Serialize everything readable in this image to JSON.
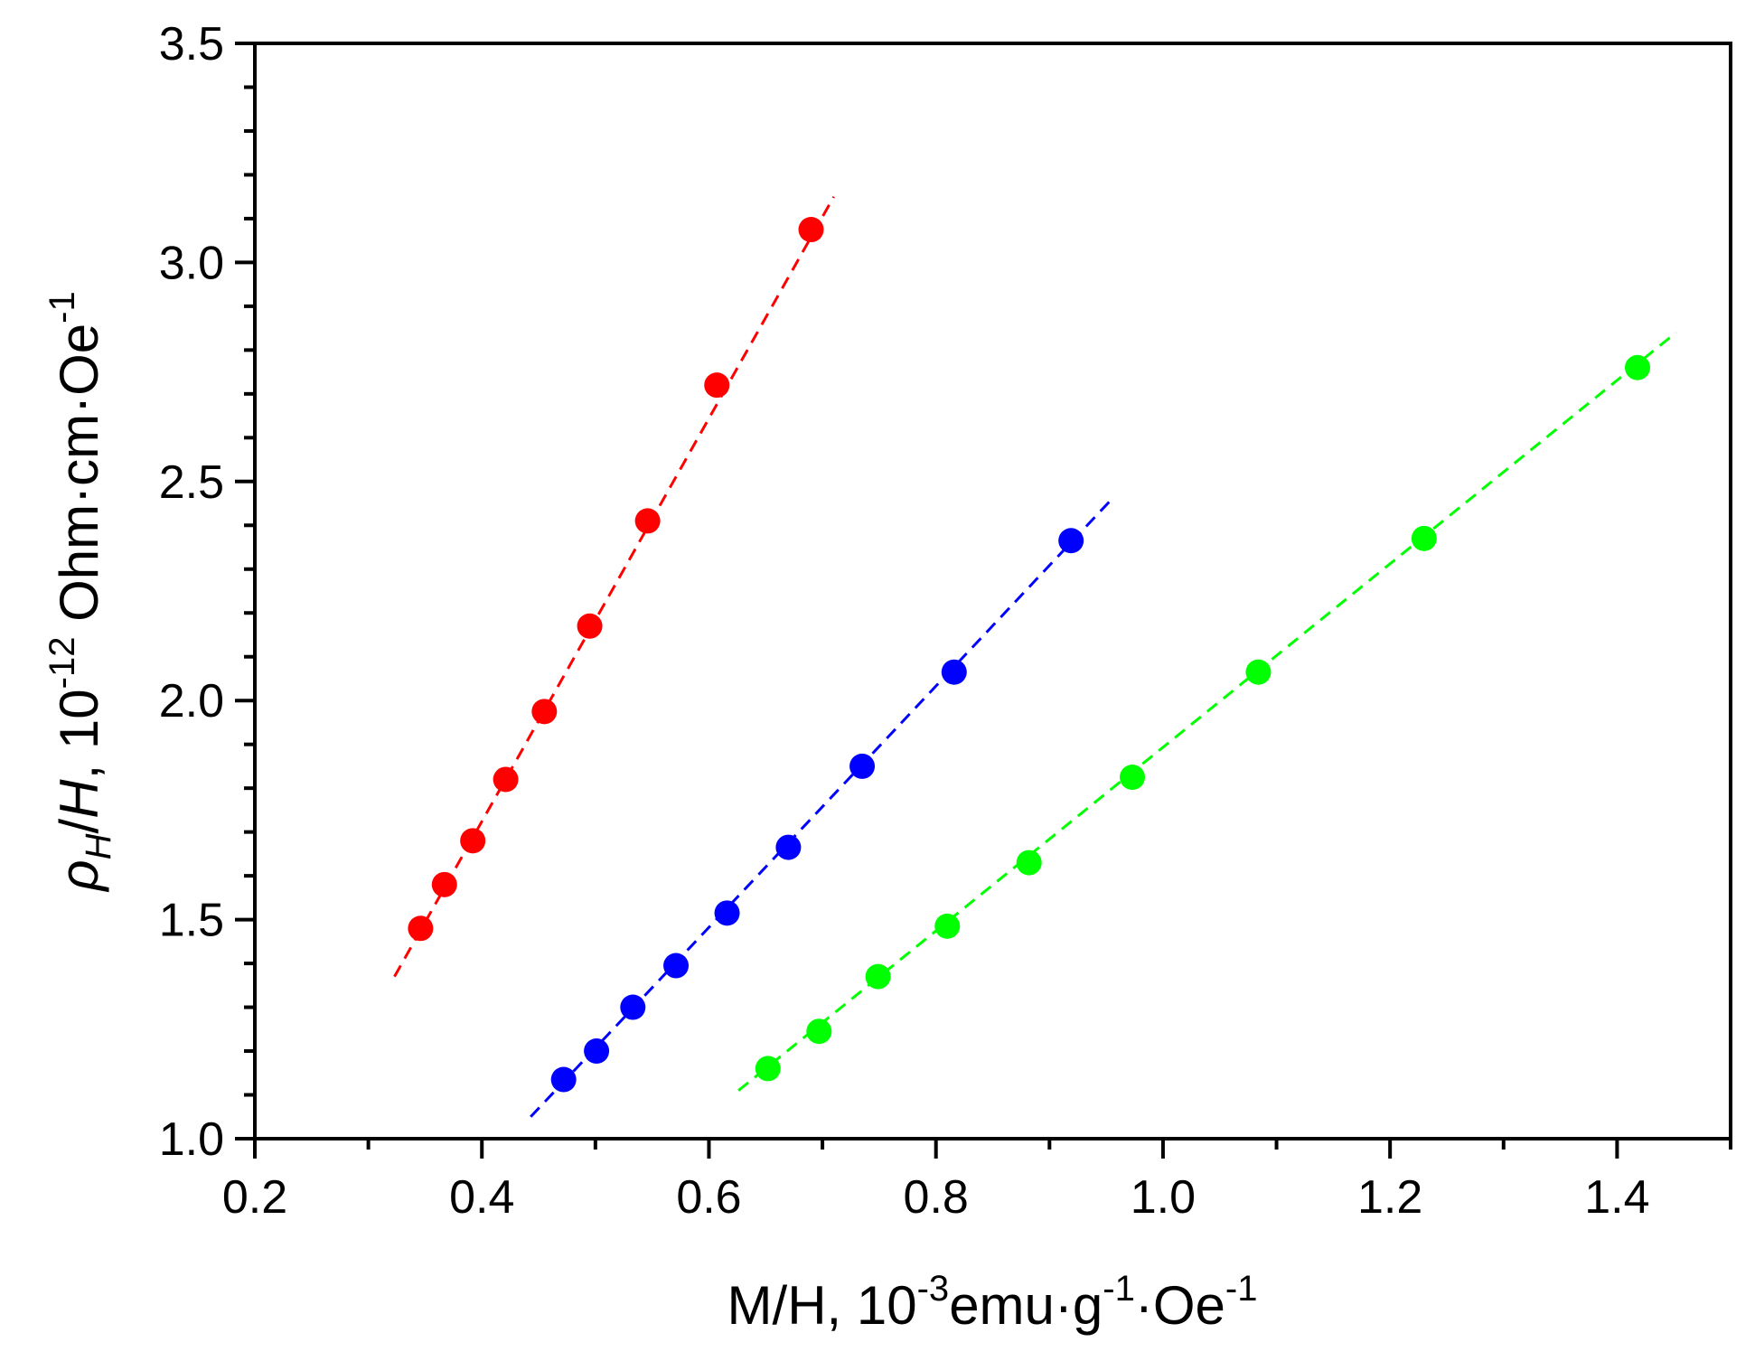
{
  "chart_data": {
    "type": "scatter",
    "title": "",
    "xlabel": {
      "main": "M/H, 10",
      "exp1": "-3",
      "unit1": "emu·g",
      "exp2": "-1",
      "unit2": "·Oe",
      "exp3": "-1"
    },
    "ylabel": {
      "symbol": "ρ",
      "sub": "H",
      "slash": "/",
      "h": "H",
      "rest": ", 10",
      "exp1": "-12",
      "unit": " Ohm·cm·Oe",
      "exp2": "-1"
    },
    "xlim": [
      0.2,
      1.5
    ],
    "ylim": [
      1.0,
      3.5
    ],
    "xticks": [
      "0.2",
      "0.4",
      "0.6",
      "0.8",
      "1.0",
      "1.2",
      "1.4"
    ],
    "xtick_values": [
      0.2,
      0.4,
      0.6,
      0.8,
      1.0,
      1.2,
      1.4
    ],
    "yticks": [
      "1.0",
      "1.5",
      "2.0",
      "2.5",
      "3.0",
      "3.5"
    ],
    "ytick_values": [
      1.0,
      1.5,
      2.0,
      2.5,
      3.0,
      3.5
    ],
    "series": [
      {
        "name": "red",
        "color": "#ff0000",
        "x": [
          0.346,
          0.367,
          0.392,
          0.421,
          0.455,
          0.495,
          0.546,
          0.607,
          0.69
        ],
        "y": [
          1.48,
          1.58,
          1.68,
          1.82,
          1.975,
          2.17,
          2.41,
          2.72,
          3.075
        ],
        "fit": {
          "x": [
            0.323,
            0.71
          ],
          "y": [
            1.37,
            3.15
          ]
        }
      },
      {
        "name": "blue",
        "color": "#0000ff",
        "x": [
          0.472,
          0.501,
          0.533,
          0.571,
          0.616,
          0.67,
          0.735,
          0.816,
          0.919
        ],
        "y": [
          1.135,
          1.2,
          1.3,
          1.395,
          1.515,
          1.665,
          1.85,
          2.065,
          2.365
        ],
        "fit": {
          "x": [
            0.443,
            0.955
          ],
          "y": [
            1.05,
            2.46
          ]
        }
      },
      {
        "name": "green",
        "color": "#00ff00",
        "x": [
          0.652,
          0.697,
          0.749,
          0.81,
          0.882,
          0.973,
          1.084,
          1.23,
          1.418
        ],
        "y": [
          1.16,
          1.245,
          1.37,
          1.485,
          1.63,
          1.825,
          2.065,
          2.37,
          2.76
        ],
        "fit": {
          "x": [
            0.626,
            1.452
          ],
          "y": [
            1.11,
            2.84
          ]
        }
      }
    ]
  }
}
